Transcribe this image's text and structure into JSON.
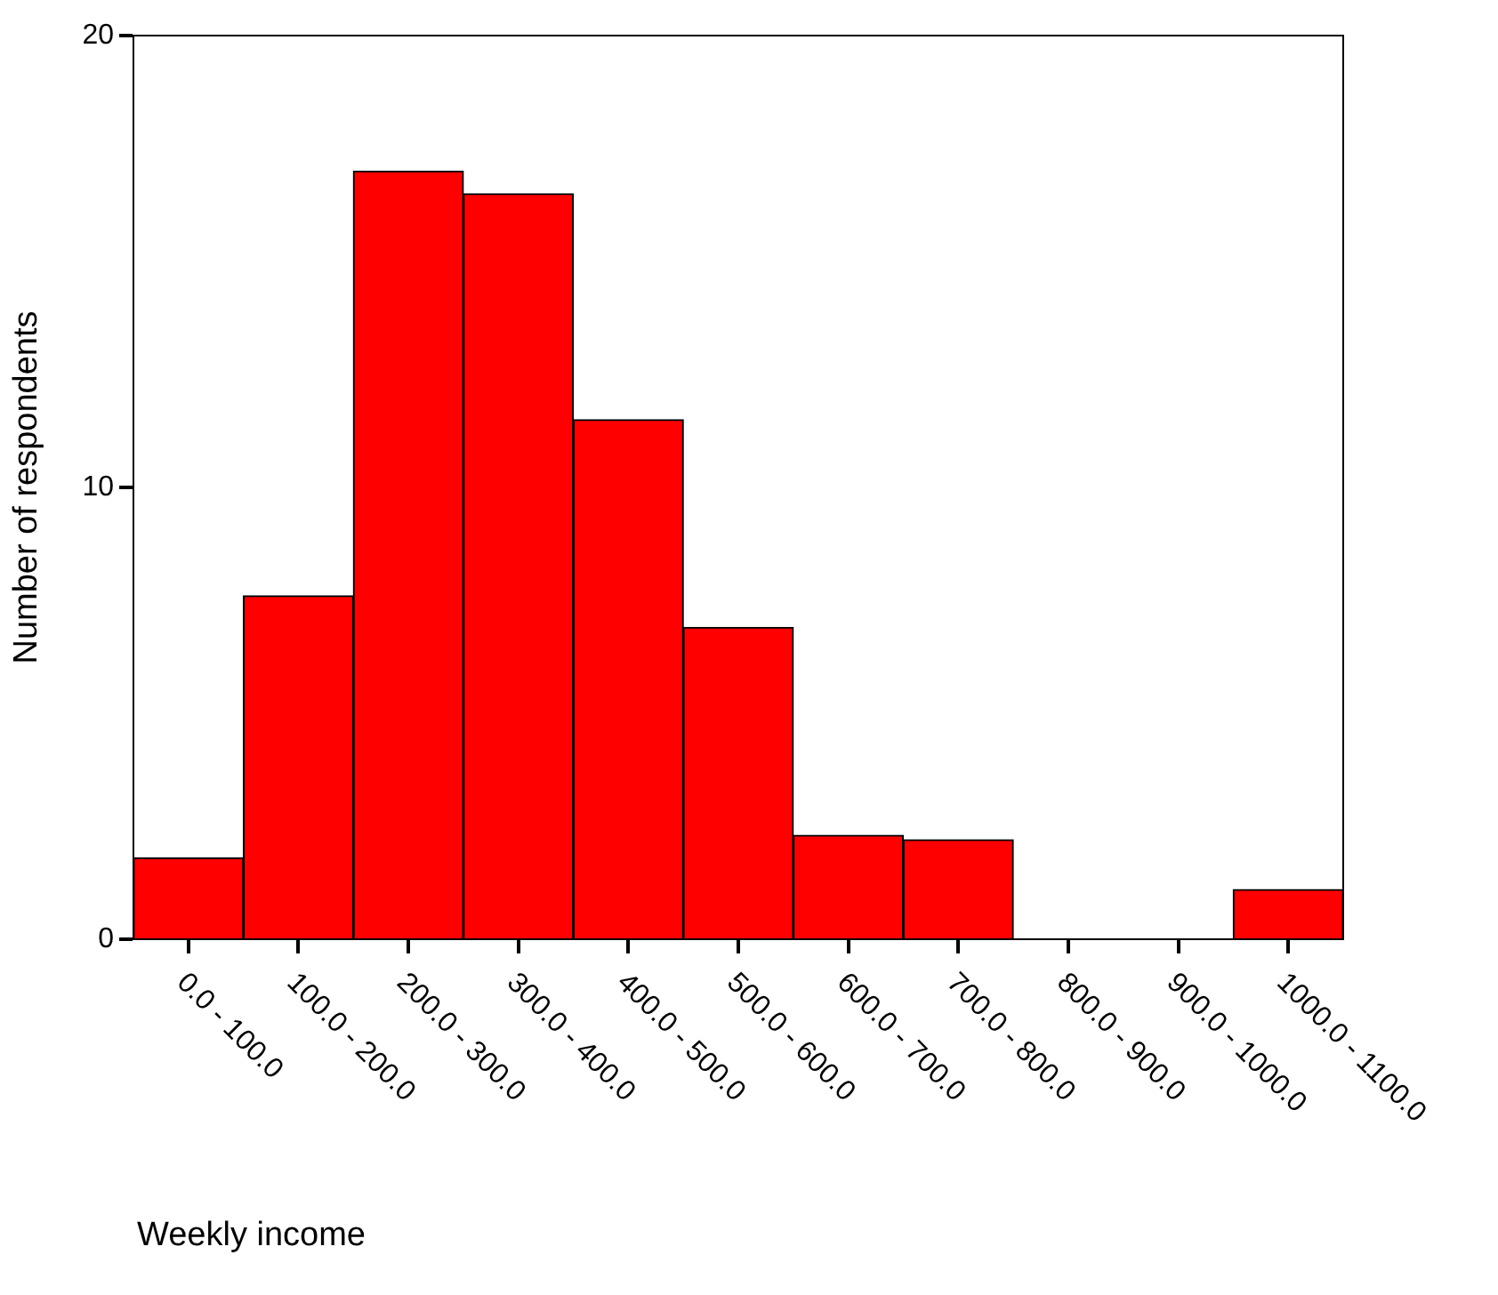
{
  "chart_data": {
    "type": "bar",
    "xlabel": "Weekly income",
    "ylabel": "Number of respondents",
    "categories": [
      "0.0 - 100.0",
      "100.0 - 200.0",
      "200.0 - 300.0",
      "300.0 - 400.0",
      "400.0 - 500.0",
      "500.0 - 600.0",
      "600.0 - 700.0",
      "700.0 - 800.0",
      "800.0 - 900.0",
      "900.0 - 1000.0",
      "1000.0 - 1100.0"
    ],
    "values": [
      1.8,
      7.6,
      17,
      16.5,
      11.5,
      6.9,
      2.3,
      2.2,
      0,
      0,
      1.1
    ],
    "color": "#ff0000",
    "ylim": [
      0,
      20
    ],
    "yticks": [
      0,
      10,
      20
    ]
  }
}
